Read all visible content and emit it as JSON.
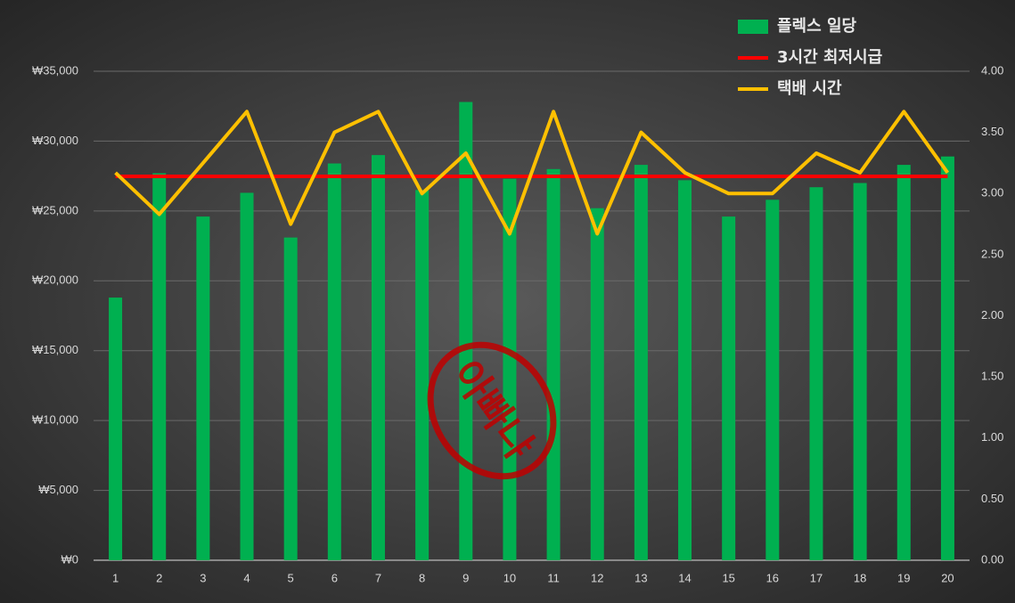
{
  "chart_data": {
    "type": "bar",
    "categories": [
      "1",
      "2",
      "3",
      "4",
      "5",
      "6",
      "7",
      "8",
      "9",
      "10",
      "11",
      "12",
      "13",
      "14",
      "15",
      "16",
      "17",
      "18",
      "19",
      "20"
    ],
    "series": [
      {
        "name": "플렉스 일당",
        "type": "bar",
        "color": "#00b050",
        "values": [
          18800,
          27700,
          24600,
          26300,
          23100,
          28400,
          29000,
          26500,
          32800,
          27300,
          28000,
          25200,
          28300,
          27200,
          24600,
          25800,
          26700,
          27000,
          28300,
          28900
        ]
      },
      {
        "name": "3시간 최저시급",
        "type": "line",
        "axis": "y2",
        "color": "#ff0000",
        "values": [
          3.14,
          3.14,
          3.14,
          3.14,
          3.14,
          3.14,
          3.14,
          3.14,
          3.14,
          3.14,
          3.14,
          3.14,
          3.14,
          3.14,
          3.14,
          3.14,
          3.14,
          3.14,
          3.14,
          3.14
        ]
      },
      {
        "name": "택배 시간",
        "type": "line",
        "axis": "y2",
        "color": "#ffc000",
        "values": [
          3.17,
          2.83,
          3.25,
          3.67,
          2.75,
          3.5,
          3.67,
          3.0,
          3.33,
          2.67,
          3.67,
          2.67,
          3.5,
          3.17,
          3.0,
          3.0,
          3.33,
          3.17,
          3.67,
          3.17
        ]
      }
    ],
    "ylim": [
      0,
      35000
    ],
    "yticks": [
      {
        "value": 0,
        "label": "₩0"
      },
      {
        "value": 5000,
        "label": "₩5,000"
      },
      {
        "value": 10000,
        "label": "₩10,000"
      },
      {
        "value": 15000,
        "label": "₩15,000"
      },
      {
        "value": 20000,
        "label": "₩20,000"
      },
      {
        "value": 25000,
        "label": "₩25,000"
      },
      {
        "value": 30000,
        "label": "₩30,000"
      },
      {
        "value": 35000,
        "label": "₩35,000"
      }
    ],
    "y2lim": [
      0,
      4
    ],
    "y2ticks": [
      {
        "value": 0,
        "label": "0.00"
      },
      {
        "value": 0.5,
        "label": "0.50"
      },
      {
        "value": 1,
        "label": "1.00"
      },
      {
        "value": 1.5,
        "label": "1.50"
      },
      {
        "value": 2,
        "label": "2.00"
      },
      {
        "value": 2.5,
        "label": "2.50"
      },
      {
        "value": 3,
        "label": "3.00"
      },
      {
        "value": 3.5,
        "label": "3.50"
      },
      {
        "value": 4,
        "label": "4.00"
      }
    ],
    "grid": true,
    "legend": "top-right",
    "annotation": "아빠냐"
  }
}
